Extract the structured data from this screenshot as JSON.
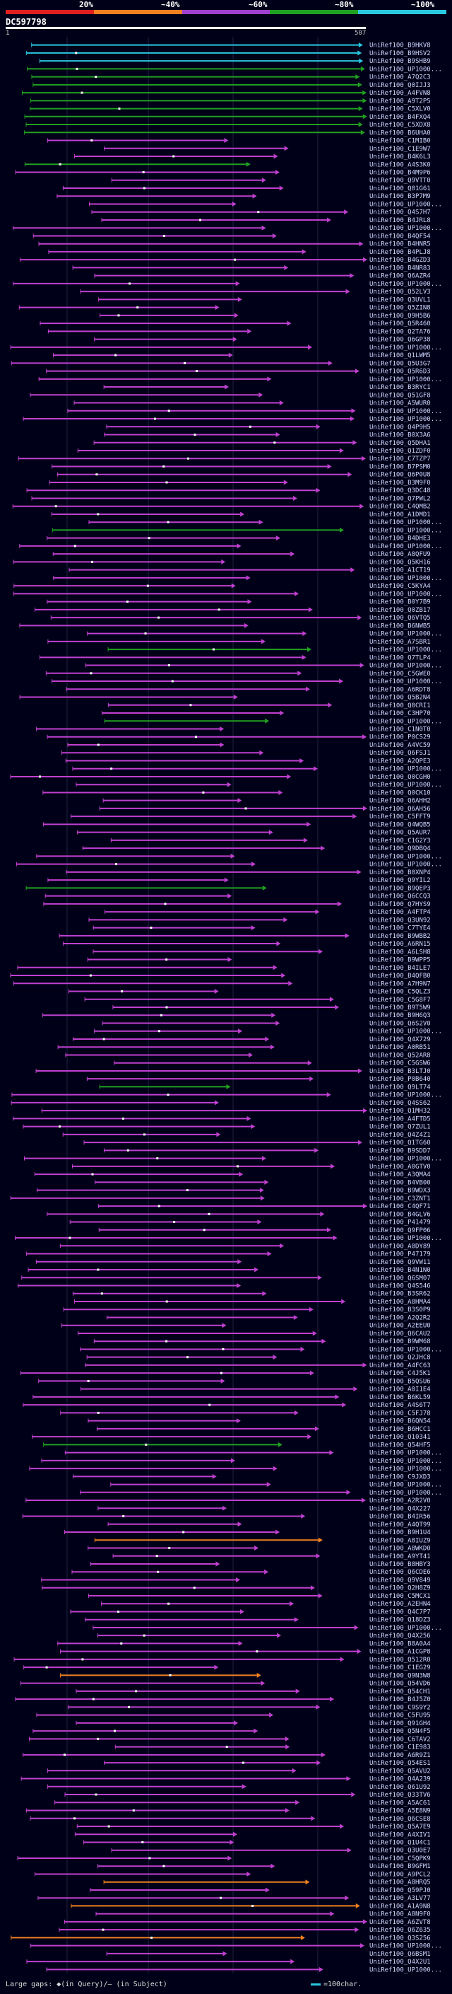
{
  "legend": {
    "labels": [
      "20%",
      "~40%",
      "~60%",
      "~80%",
      "~100%"
    ],
    "colors": [
      "#e02020",
      "#f08020",
      "#a040d0",
      "#20a020",
      "#28c8e0"
    ]
  },
  "query": {
    "title": "DC597798",
    "start": "1",
    "end": "507"
  },
  "hit_colors": {
    "cyan": "#28c8e0",
    "green": "#20a020",
    "magenta": "#c040d0",
    "orange": "#f08020"
  },
  "hits": [
    {
      "label": "UniRef100_B9HKV8",
      "color": "cyan"
    },
    {
      "label": "UniRef100_B9HSV2",
      "color": "cyan"
    },
    {
      "label": "UniRef100_B9SHB9",
      "color": "cyan"
    },
    {
      "label": "UniRef100_UP1000...",
      "color": "green"
    },
    {
      "label": "UniRef100_A7Q2C3",
      "color": "green"
    },
    {
      "label": "UniRef100_Q0IJJ3",
      "color": "green"
    },
    {
      "label": "UniRef100_A4FVN8",
      "color": "green"
    },
    {
      "label": "UniRef100_A9T2P5",
      "color": "green"
    },
    {
      "label": "UniRef100_C5XLV0",
      "color": "green"
    },
    {
      "label": "UniRef100_B4FXQ4",
      "color": "green"
    },
    {
      "label": "UniRef100_C5XDX8",
      "color": "green"
    },
    {
      "label": "UniRef100_B6UHA0",
      "color": "green"
    },
    {
      "label": "UniRef100_C1MIB0",
      "color": "magenta"
    },
    {
      "label": "UniRef100_C1E9W7",
      "color": "magenta"
    },
    {
      "label": "UniRef100_B4K6L3",
      "color": "magenta"
    },
    {
      "label": "UniRef100_A4S3K0",
      "color": "green"
    },
    {
      "label": "UniRef100_B4M9P6",
      "color": "magenta"
    },
    {
      "label": "UniRef100_Q9VTT0",
      "color": "magenta"
    },
    {
      "label": "UniRef100_Q01G61",
      "color": "magenta"
    },
    {
      "label": "UniRef100_B3P7M9",
      "color": "magenta"
    },
    {
      "label": "UniRef100_UP1000...",
      "color": "magenta"
    },
    {
      "label": "UniRef100_Q4S7H7",
      "color": "magenta"
    },
    {
      "label": "UniRef100_B4JRL8",
      "color": "magenta"
    },
    {
      "label": "UniRef100_UP1000...",
      "color": "magenta"
    },
    {
      "label": "UniRef100_B4QF54",
      "color": "magenta"
    },
    {
      "label": "UniRef100_B4HNR5",
      "color": "magenta"
    },
    {
      "label": "UniRef100_B4PLJ8",
      "color": "magenta"
    },
    {
      "label": "UniRef100_B4GZD3",
      "color": "magenta"
    },
    {
      "label": "UniRef100_B4NR83",
      "color": "magenta"
    },
    {
      "label": "UniRef100_Q6AZR4",
      "color": "magenta"
    },
    {
      "label": "UniRef100_UP1000...",
      "color": "magenta"
    },
    {
      "label": "UniRef100_Q52LV3",
      "color": "magenta"
    },
    {
      "label": "UniRef100_Q3UVL1",
      "color": "magenta"
    },
    {
      "label": "UniRef100_Q5ZIN8",
      "color": "magenta"
    },
    {
      "label": "UniRef100_Q9H5B6",
      "color": "magenta"
    },
    {
      "label": "UniRef100_Q5R460",
      "color": "magenta"
    },
    {
      "label": "UniRef100_Q2TA76",
      "color": "magenta"
    },
    {
      "label": "UniRef100_Q6GP38",
      "color": "magenta"
    },
    {
      "label": "UniRef100_UP1000...",
      "color": "magenta"
    },
    {
      "label": "UniRef100_Q1LWM5",
      "color": "magenta"
    },
    {
      "label": "UniRef100_Q5U3G7",
      "color": "magenta"
    },
    {
      "label": "UniRef100_Q5R6D3",
      "color": "magenta"
    },
    {
      "label": "UniRef100_UP1000...",
      "color": "magenta"
    },
    {
      "label": "UniRef100_B3RYC1",
      "color": "magenta"
    },
    {
      "label": "UniRef100_Q51GF8",
      "color": "magenta"
    },
    {
      "label": "UniRef100_A5WUR0",
      "color": "magenta"
    },
    {
      "label": "UniRef100_UP1000...",
      "color": "magenta"
    },
    {
      "label": "UniRef100_UP1000...",
      "color": "magenta"
    },
    {
      "label": "UniRef100_Q4P9H5",
      "color": "magenta"
    },
    {
      "label": "UniRef100_B0X3A6",
      "color": "magenta"
    },
    {
      "label": "UniRef100_Q5DHA1",
      "color": "magenta"
    },
    {
      "label": "UniRef100_Q1ZDF0",
      "color": "magenta"
    },
    {
      "label": "UniRef100_C7TZP7",
      "color": "magenta"
    },
    {
      "label": "UniRef100_B7PSM0",
      "color": "magenta"
    },
    {
      "label": "UniRef100_Q6P0U8",
      "color": "magenta"
    },
    {
      "label": "UniRef100_B3M9F0",
      "color": "magenta"
    },
    {
      "label": "UniRef100_Q3DC48",
      "color": "magenta"
    },
    {
      "label": "UniRef100_Q7PWL2",
      "color": "magenta"
    },
    {
      "label": "UniRef100_C4QMB2",
      "color": "magenta"
    },
    {
      "label": "UniRef100_A1DMD1",
      "color": "magenta"
    },
    {
      "label": "UniRef100_UP1000...",
      "color": "magenta"
    },
    {
      "label": "UniRef100_UP1000...",
      "color": "green"
    },
    {
      "label": "UniRef100_B4DHE3",
      "color": "magenta"
    },
    {
      "label": "UniRef100_UP1000...",
      "color": "magenta"
    },
    {
      "label": "UniRef100_A8QFU9",
      "color": "magenta"
    },
    {
      "label": "UniRef100_Q5KH16",
      "color": "magenta"
    },
    {
      "label": "UniRef100_A1CT19",
      "color": "magenta"
    },
    {
      "label": "UniRef100_UP1000...",
      "color": "magenta"
    },
    {
      "label": "UniRef100_C5KYA4",
      "color": "magenta"
    },
    {
      "label": "UniRef100_UP1000...",
      "color": "magenta"
    },
    {
      "label": "UniRef100_B0Y7B9",
      "color": "magenta"
    },
    {
      "label": "UniRef100_Q0ZB17",
      "color": "magenta"
    },
    {
      "label": "UniRef100_Q6VTQ5",
      "color": "magenta"
    },
    {
      "label": "UniRef100_B6NWB5",
      "color": "magenta"
    },
    {
      "label": "UniRef100_UP1000...",
      "color": "magenta"
    },
    {
      "label": "UniRef100_A7SBR1",
      "color": "magenta"
    },
    {
      "label": "UniRef100_UP1000...",
      "color": "green"
    },
    {
      "label": "UniRef100_Q7TLP4",
      "color": "magenta"
    },
    {
      "label": "UniRef100_UP1000...",
      "color": "magenta"
    },
    {
      "label": "UniRef100_C5GWE0",
      "color": "magenta"
    },
    {
      "label": "UniRef100_UP1000...",
      "color": "magenta"
    },
    {
      "label": "UniRef100_A6RDT8",
      "color": "magenta"
    },
    {
      "label": "UniRef100_Q5B2N4",
      "color": "magenta"
    },
    {
      "label": "UniRef100_Q0CRI1",
      "color": "magenta"
    },
    {
      "label": "UniRef100_C3HP70",
      "color": "magenta"
    },
    {
      "label": "UniRef100_UP1000...",
      "color": "green"
    },
    {
      "label": "UniRef100_C1N0T0",
      "color": "magenta"
    },
    {
      "label": "UniRef100_P0CS29",
      "color": "magenta"
    },
    {
      "label": "UniRef100_A4VC59",
      "color": "magenta"
    },
    {
      "label": "UniRef100_Q6FSJ1",
      "color": "magenta"
    },
    {
      "label": "UniRef100_A2QPE3",
      "color": "magenta"
    },
    {
      "label": "UniRef100_UP1000...",
      "color": "magenta"
    },
    {
      "label": "UniRef100_Q0CGH0",
      "color": "magenta"
    },
    {
      "label": "UniRef100_UP1000...",
      "color": "magenta"
    },
    {
      "label": "UniRef100_Q0CK10",
      "color": "magenta"
    },
    {
      "label": "UniRef100_Q6AHH2",
      "color": "magenta"
    },
    {
      "label": "UniRef100_Q6AH56",
      "color": "magenta"
    },
    {
      "label": "UniRef100_C5FFT9",
      "color": "magenta"
    },
    {
      "label": "UniRef100_Q4WQB5",
      "color": "magenta"
    },
    {
      "label": "UniRef100_Q5AUR7",
      "color": "magenta"
    },
    {
      "label": "UniRef100_C1G2Y3",
      "color": "magenta"
    },
    {
      "label": "UniRef100_Q9DBQ4",
      "color": "magenta"
    },
    {
      "label": "UniRef100_UP1000...",
      "color": "magenta"
    },
    {
      "label": "UniRef100_UP1000...",
      "color": "magenta"
    },
    {
      "label": "UniRef100_B0XNP4",
      "color": "magenta"
    },
    {
      "label": "UniRef100_Q9YIL2",
      "color": "magenta"
    },
    {
      "label": "UniRef100_B9QEP3",
      "color": "green"
    },
    {
      "label": "UniRef100_Q6CCQ3",
      "color": "magenta"
    },
    {
      "label": "UniRef100_Q7HYS9",
      "color": "magenta"
    },
    {
      "label": "UniRef100_A4FTP4",
      "color": "magenta"
    },
    {
      "label": "UniRef100_Q3UN92",
      "color": "magenta"
    },
    {
      "label": "UniRef100_C7TYE4",
      "color": "magenta"
    },
    {
      "label": "UniRef100_B9WBB2",
      "color": "magenta"
    },
    {
      "label": "UniRef100_A6RN15",
      "color": "magenta"
    },
    {
      "label": "UniRef100_A6LSH8",
      "color": "magenta"
    },
    {
      "label": "UniRef100_B9WPP5",
      "color": "magenta"
    },
    {
      "label": "UniRef100_B4ILE7",
      "color": "magenta"
    },
    {
      "label": "UniRef100_B4QFB0",
      "color": "magenta"
    },
    {
      "label": "UniRef100_A7H9N7",
      "color": "magenta"
    },
    {
      "label": "UniRef100_C5QLZ3",
      "color": "magenta"
    },
    {
      "label": "UniRef100_C5G8F7",
      "color": "magenta"
    },
    {
      "label": "UniRef100_B9T5W9",
      "color": "magenta"
    },
    {
      "label": "UniRef100_B9H6Q3",
      "color": "magenta"
    },
    {
      "label": "UniRef100_Q6S2V0",
      "color": "magenta"
    },
    {
      "label": "UniRef100_UP1000...",
      "color": "magenta"
    },
    {
      "label": "UniRef100_Q4X729",
      "color": "magenta"
    },
    {
      "label": "UniRef100_A0RB51",
      "color": "magenta"
    },
    {
      "label": "UniRef100_Q52AR8",
      "color": "magenta"
    },
    {
      "label": "UniRef100_C5GSW6",
      "color": "magenta"
    },
    {
      "label": "UniRef100_B3LTJ0",
      "color": "magenta"
    },
    {
      "label": "UniRef100_P0B640",
      "color": "magenta"
    },
    {
      "label": "UniRef100_Q9LT74",
      "color": "green"
    },
    {
      "label": "UniRef100_UP1000...",
      "color": "magenta"
    },
    {
      "label": "UniRef100_Q4SS62",
      "color": "magenta"
    },
    {
      "label": "UniRef100_Q1MH32",
      "color": "magenta"
    },
    {
      "label": "UniRef100_A4FTD5",
      "color": "magenta"
    },
    {
      "label": "UniRef100_Q7ZUL1",
      "color": "magenta"
    },
    {
      "label": "UniRef100_Q4Z4Z1",
      "color": "magenta"
    },
    {
      "label": "UniRef100_Q1TG60",
      "color": "magenta"
    },
    {
      "label": "UniRef100_B9SDD7",
      "color": "magenta"
    },
    {
      "label": "UniRef100_UP1000...",
      "color": "magenta"
    },
    {
      "label": "UniRef100_A0GTV0",
      "color": "magenta"
    },
    {
      "label": "UniRef100_A3QMA4",
      "color": "magenta"
    },
    {
      "label": "UniRef100_B4VB00",
      "color": "magenta"
    },
    {
      "label": "UniRef100_B9WDX3",
      "color": "magenta"
    },
    {
      "label": "UniRef100_C3ZNT1",
      "color": "magenta"
    },
    {
      "label": "UniRef100_C4QF71",
      "color": "magenta"
    },
    {
      "label": "UniRef100_B4GLV6",
      "color": "magenta"
    },
    {
      "label": "UniRef100_P41479",
      "color": "magenta"
    },
    {
      "label": "UniRef100_Q9FP06",
      "color": "magenta"
    },
    {
      "label": "UniRef100_UP1000...",
      "color": "magenta"
    },
    {
      "label": "UniRef100_A0DY89",
      "color": "magenta"
    },
    {
      "label": "UniRef100_P47179",
      "color": "magenta"
    },
    {
      "label": "UniRef100_Q9VW11",
      "color": "magenta"
    },
    {
      "label": "UniRef100_B4N1N0",
      "color": "magenta"
    },
    {
      "label": "UniRef100_Q6SM07",
      "color": "magenta"
    },
    {
      "label": "UniRef100_Q4S546",
      "color": "magenta"
    },
    {
      "label": "UniRef100_B3SR62",
      "color": "magenta"
    },
    {
      "label": "UniRef100_A8HMA4",
      "color": "magenta"
    },
    {
      "label": "UniRef100_B3S0P9",
      "color": "magenta"
    },
    {
      "label": "UniRef100_A2Q2R2",
      "color": "magenta"
    },
    {
      "label": "UniRef100_A2EEU0",
      "color": "magenta"
    },
    {
      "label": "UniRef100_Q6CAU2",
      "color": "magenta"
    },
    {
      "label": "UniRef100_B9WM68",
      "color": "magenta"
    },
    {
      "label": "UniRef100_UP1000...",
      "color": "magenta"
    },
    {
      "label": "UniRef100_Q2JHC8",
      "color": "magenta"
    },
    {
      "label": "UniRef100_A4FC63",
      "color": "magenta"
    },
    {
      "label": "UniRef100_C4J5K1",
      "color": "magenta"
    },
    {
      "label": "UniRef100_B5QSU6",
      "color": "magenta"
    },
    {
      "label": "UniRef100_A0I1E4",
      "color": "magenta"
    },
    {
      "label": "UniRef100_B6KL59",
      "color": "magenta"
    },
    {
      "label": "UniRef100_A4S6T7",
      "color": "magenta"
    },
    {
      "label": "UniRef100_C5FJ78",
      "color": "magenta"
    },
    {
      "label": "UniRef100_B6QN54",
      "color": "magenta"
    },
    {
      "label": "UniRef100_B6HCC1",
      "color": "magenta"
    },
    {
      "label": "UniRef100_Q10341",
      "color": "magenta"
    },
    {
      "label": "UniRef100_Q54HF5",
      "color": "green"
    },
    {
      "label": "UniRef100_UP1000...",
      "color": "magenta"
    },
    {
      "label": "UniRef100_UP1000...",
      "color": "magenta"
    },
    {
      "label": "UniRef100_UP1000...",
      "color": "magenta"
    },
    {
      "label": "UniRef100_C9JXD3",
      "color": "magenta"
    },
    {
      "label": "UniRef100_UP1000...",
      "color": "magenta"
    },
    {
      "label": "UniRef100_UP1000...",
      "color": "magenta"
    },
    {
      "label": "UniRef100_A2R2V0",
      "color": "magenta"
    },
    {
      "label": "UniRef100_Q4X227",
      "color": "magenta"
    },
    {
      "label": "UniRef100_B4IR56",
      "color": "magenta"
    },
    {
      "label": "UniRef100_A4QT99",
      "color": "magenta"
    },
    {
      "label": "UniRef100_B9H1U4",
      "color": "magenta"
    },
    {
      "label": "UniRef100_A8IUZ9",
      "color": "orange"
    },
    {
      "label": "UniRef100_A8WKD0",
      "color": "magenta"
    },
    {
      "label": "UniRef100_A9YT41",
      "color": "magenta"
    },
    {
      "label": "UniRef100_B8HBY3",
      "color": "magenta"
    },
    {
      "label": "UniRef100_Q6CDE6",
      "color": "magenta"
    },
    {
      "label": "UniRef100_Q9V849",
      "color": "magenta"
    },
    {
      "label": "UniRef100_Q2H8Z9",
      "color": "magenta"
    },
    {
      "label": "UniRef100_C5MCX1",
      "color": "magenta"
    },
    {
      "label": "UniRef100_A2EHN4",
      "color": "magenta"
    },
    {
      "label": "UniRef100_Q4C7P7",
      "color": "magenta"
    },
    {
      "label": "UniRef100_Q18DZ3",
      "color": "magenta"
    },
    {
      "label": "UniRef100_UP1000...",
      "color": "magenta"
    },
    {
      "label": "UniRef100_Q4X256",
      "color": "magenta"
    },
    {
      "label": "UniRef100_B8A0A4",
      "color": "magenta"
    },
    {
      "label": "UniRef100_A1CGP8",
      "color": "magenta"
    },
    {
      "label": "UniRef100_Q512R0",
      "color": "magenta"
    },
    {
      "label": "UniRef100_C1EG29",
      "color": "magenta"
    },
    {
      "label": "UniRef100_Q9N3W8",
      "color": "orange"
    },
    {
      "label": "UniRef100_Q54VD6",
      "color": "magenta"
    },
    {
      "label": "UniRef100_Q54CH1",
      "color": "magenta"
    },
    {
      "label": "UniRef100_B4J5Z0",
      "color": "magenta"
    },
    {
      "label": "UniRef100_C9S9Y2",
      "color": "magenta"
    },
    {
      "label": "UniRef100_C5FU95",
      "color": "magenta"
    },
    {
      "label": "UniRef100_Q91GH4",
      "color": "magenta"
    },
    {
      "label": "UniRef100_Q5N4F5",
      "color": "magenta"
    },
    {
      "label": "UniRef100_C6TAV2",
      "color": "magenta"
    },
    {
      "label": "UniRef100_C1E983",
      "color": "magenta"
    },
    {
      "label": "UniRef100_A6R9Z1",
      "color": "magenta"
    },
    {
      "label": "UniRef100_Q54ES1",
      "color": "magenta"
    },
    {
      "label": "UniRef100_Q5AVU2",
      "color": "magenta"
    },
    {
      "label": "UniRef100_Q4A239",
      "color": "magenta"
    },
    {
      "label": "UniRef100_Q61U92",
      "color": "magenta"
    },
    {
      "label": "UniRef100_Q33TV6",
      "color": "magenta"
    },
    {
      "label": "UniRef100_A5AC61",
      "color": "magenta"
    },
    {
      "label": "UniRef100_A5E8N9",
      "color": "magenta"
    },
    {
      "label": "UniRef100_Q6CSE8",
      "color": "magenta"
    },
    {
      "label": "UniRef100_Q5A7E9",
      "color": "magenta"
    },
    {
      "label": "UniRef100_A4XIV1",
      "color": "magenta"
    },
    {
      "label": "UniRef100_Q1U4C1",
      "color": "magenta"
    },
    {
      "label": "UniRef100_Q3U0E7",
      "color": "magenta"
    },
    {
      "label": "UniRef100_C5QPK9",
      "color": "magenta"
    },
    {
      "label": "UniRef100_B9GFM1",
      "color": "magenta"
    },
    {
      "label": "UniRef100_A9PCL2",
      "color": "magenta"
    },
    {
      "label": "UniRef100_A8HRQ5",
      "color": "orange"
    },
    {
      "label": "UniRef100_Q59PJ0",
      "color": "magenta"
    },
    {
      "label": "UniRef100_A3LV77",
      "color": "magenta"
    },
    {
      "label": "UniRef100_A1A9N8",
      "color": "orange"
    },
    {
      "label": "UniRef100_A8N9F0",
      "color": "magenta"
    },
    {
      "label": "UniRef100_A6ZVT8",
      "color": "magenta"
    },
    {
      "label": "UniRef100_Q6Z635",
      "color": "magenta"
    },
    {
      "label": "UniRef100_Q3S256",
      "color": "orange"
    },
    {
      "label": "UniRef100_UP1000...",
      "color": "magenta"
    },
    {
      "label": "UniRef100_Q6BSM1",
      "color": "magenta"
    },
    {
      "label": "UniRef100_Q4X2U1",
      "color": "magenta"
    },
    {
      "label": "UniRef100_UP1000...",
      "color": "magenta"
    }
  ],
  "footer": {
    "large_gaps": "Large gaps: ◆(in Query)/– (in Subject)",
    "scale": "=100char."
  }
}
